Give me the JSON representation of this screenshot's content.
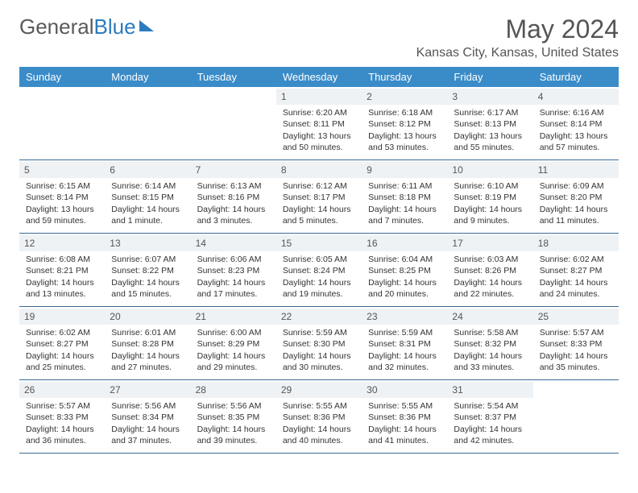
{
  "logo": {
    "text_gray": "General",
    "text_blue": "Blue"
  },
  "title": "May 2024",
  "location": "Kansas City, Kansas, United States",
  "day_names": [
    "Sunday",
    "Monday",
    "Tuesday",
    "Wednesday",
    "Thursday",
    "Friday",
    "Saturday"
  ],
  "colors": {
    "header_bg": "#3a8cc9",
    "header_text": "#ffffff",
    "daynum_bg": "#eef2f5",
    "border": "#3a6a95",
    "logo_blue": "#2b7bbf",
    "text": "#333333",
    "title_text": "#555555"
  },
  "weeks": [
    [
      {
        "day": "",
        "sunrise": "",
        "sunset": "",
        "daylight": ""
      },
      {
        "day": "",
        "sunrise": "",
        "sunset": "",
        "daylight": ""
      },
      {
        "day": "",
        "sunrise": "",
        "sunset": "",
        "daylight": ""
      },
      {
        "day": "1",
        "sunrise": "Sunrise: 6:20 AM",
        "sunset": "Sunset: 8:11 PM",
        "daylight": "Daylight: 13 hours and 50 minutes."
      },
      {
        "day": "2",
        "sunrise": "Sunrise: 6:18 AM",
        "sunset": "Sunset: 8:12 PM",
        "daylight": "Daylight: 13 hours and 53 minutes."
      },
      {
        "day": "3",
        "sunrise": "Sunrise: 6:17 AM",
        "sunset": "Sunset: 8:13 PM",
        "daylight": "Daylight: 13 hours and 55 minutes."
      },
      {
        "day": "4",
        "sunrise": "Sunrise: 6:16 AM",
        "sunset": "Sunset: 8:14 PM",
        "daylight": "Daylight: 13 hours and 57 minutes."
      }
    ],
    [
      {
        "day": "5",
        "sunrise": "Sunrise: 6:15 AM",
        "sunset": "Sunset: 8:14 PM",
        "daylight": "Daylight: 13 hours and 59 minutes."
      },
      {
        "day": "6",
        "sunrise": "Sunrise: 6:14 AM",
        "sunset": "Sunset: 8:15 PM",
        "daylight": "Daylight: 14 hours and 1 minute."
      },
      {
        "day": "7",
        "sunrise": "Sunrise: 6:13 AM",
        "sunset": "Sunset: 8:16 PM",
        "daylight": "Daylight: 14 hours and 3 minutes."
      },
      {
        "day": "8",
        "sunrise": "Sunrise: 6:12 AM",
        "sunset": "Sunset: 8:17 PM",
        "daylight": "Daylight: 14 hours and 5 minutes."
      },
      {
        "day": "9",
        "sunrise": "Sunrise: 6:11 AM",
        "sunset": "Sunset: 8:18 PM",
        "daylight": "Daylight: 14 hours and 7 minutes."
      },
      {
        "day": "10",
        "sunrise": "Sunrise: 6:10 AM",
        "sunset": "Sunset: 8:19 PM",
        "daylight": "Daylight: 14 hours and 9 minutes."
      },
      {
        "day": "11",
        "sunrise": "Sunrise: 6:09 AM",
        "sunset": "Sunset: 8:20 PM",
        "daylight": "Daylight: 14 hours and 11 minutes."
      }
    ],
    [
      {
        "day": "12",
        "sunrise": "Sunrise: 6:08 AM",
        "sunset": "Sunset: 8:21 PM",
        "daylight": "Daylight: 14 hours and 13 minutes."
      },
      {
        "day": "13",
        "sunrise": "Sunrise: 6:07 AM",
        "sunset": "Sunset: 8:22 PM",
        "daylight": "Daylight: 14 hours and 15 minutes."
      },
      {
        "day": "14",
        "sunrise": "Sunrise: 6:06 AM",
        "sunset": "Sunset: 8:23 PM",
        "daylight": "Daylight: 14 hours and 17 minutes."
      },
      {
        "day": "15",
        "sunrise": "Sunrise: 6:05 AM",
        "sunset": "Sunset: 8:24 PM",
        "daylight": "Daylight: 14 hours and 19 minutes."
      },
      {
        "day": "16",
        "sunrise": "Sunrise: 6:04 AM",
        "sunset": "Sunset: 8:25 PM",
        "daylight": "Daylight: 14 hours and 20 minutes."
      },
      {
        "day": "17",
        "sunrise": "Sunrise: 6:03 AM",
        "sunset": "Sunset: 8:26 PM",
        "daylight": "Daylight: 14 hours and 22 minutes."
      },
      {
        "day": "18",
        "sunrise": "Sunrise: 6:02 AM",
        "sunset": "Sunset: 8:27 PM",
        "daylight": "Daylight: 14 hours and 24 minutes."
      }
    ],
    [
      {
        "day": "19",
        "sunrise": "Sunrise: 6:02 AM",
        "sunset": "Sunset: 8:27 PM",
        "daylight": "Daylight: 14 hours and 25 minutes."
      },
      {
        "day": "20",
        "sunrise": "Sunrise: 6:01 AM",
        "sunset": "Sunset: 8:28 PM",
        "daylight": "Daylight: 14 hours and 27 minutes."
      },
      {
        "day": "21",
        "sunrise": "Sunrise: 6:00 AM",
        "sunset": "Sunset: 8:29 PM",
        "daylight": "Daylight: 14 hours and 29 minutes."
      },
      {
        "day": "22",
        "sunrise": "Sunrise: 5:59 AM",
        "sunset": "Sunset: 8:30 PM",
        "daylight": "Daylight: 14 hours and 30 minutes."
      },
      {
        "day": "23",
        "sunrise": "Sunrise: 5:59 AM",
        "sunset": "Sunset: 8:31 PM",
        "daylight": "Daylight: 14 hours and 32 minutes."
      },
      {
        "day": "24",
        "sunrise": "Sunrise: 5:58 AM",
        "sunset": "Sunset: 8:32 PM",
        "daylight": "Daylight: 14 hours and 33 minutes."
      },
      {
        "day": "25",
        "sunrise": "Sunrise: 5:57 AM",
        "sunset": "Sunset: 8:33 PM",
        "daylight": "Daylight: 14 hours and 35 minutes."
      }
    ],
    [
      {
        "day": "26",
        "sunrise": "Sunrise: 5:57 AM",
        "sunset": "Sunset: 8:33 PM",
        "daylight": "Daylight: 14 hours and 36 minutes."
      },
      {
        "day": "27",
        "sunrise": "Sunrise: 5:56 AM",
        "sunset": "Sunset: 8:34 PM",
        "daylight": "Daylight: 14 hours and 37 minutes."
      },
      {
        "day": "28",
        "sunrise": "Sunrise: 5:56 AM",
        "sunset": "Sunset: 8:35 PM",
        "daylight": "Daylight: 14 hours and 39 minutes."
      },
      {
        "day": "29",
        "sunrise": "Sunrise: 5:55 AM",
        "sunset": "Sunset: 8:36 PM",
        "daylight": "Daylight: 14 hours and 40 minutes."
      },
      {
        "day": "30",
        "sunrise": "Sunrise: 5:55 AM",
        "sunset": "Sunset: 8:36 PM",
        "daylight": "Daylight: 14 hours and 41 minutes."
      },
      {
        "day": "31",
        "sunrise": "Sunrise: 5:54 AM",
        "sunset": "Sunset: 8:37 PM",
        "daylight": "Daylight: 14 hours and 42 minutes."
      },
      {
        "day": "",
        "sunrise": "",
        "sunset": "",
        "daylight": ""
      }
    ]
  ]
}
